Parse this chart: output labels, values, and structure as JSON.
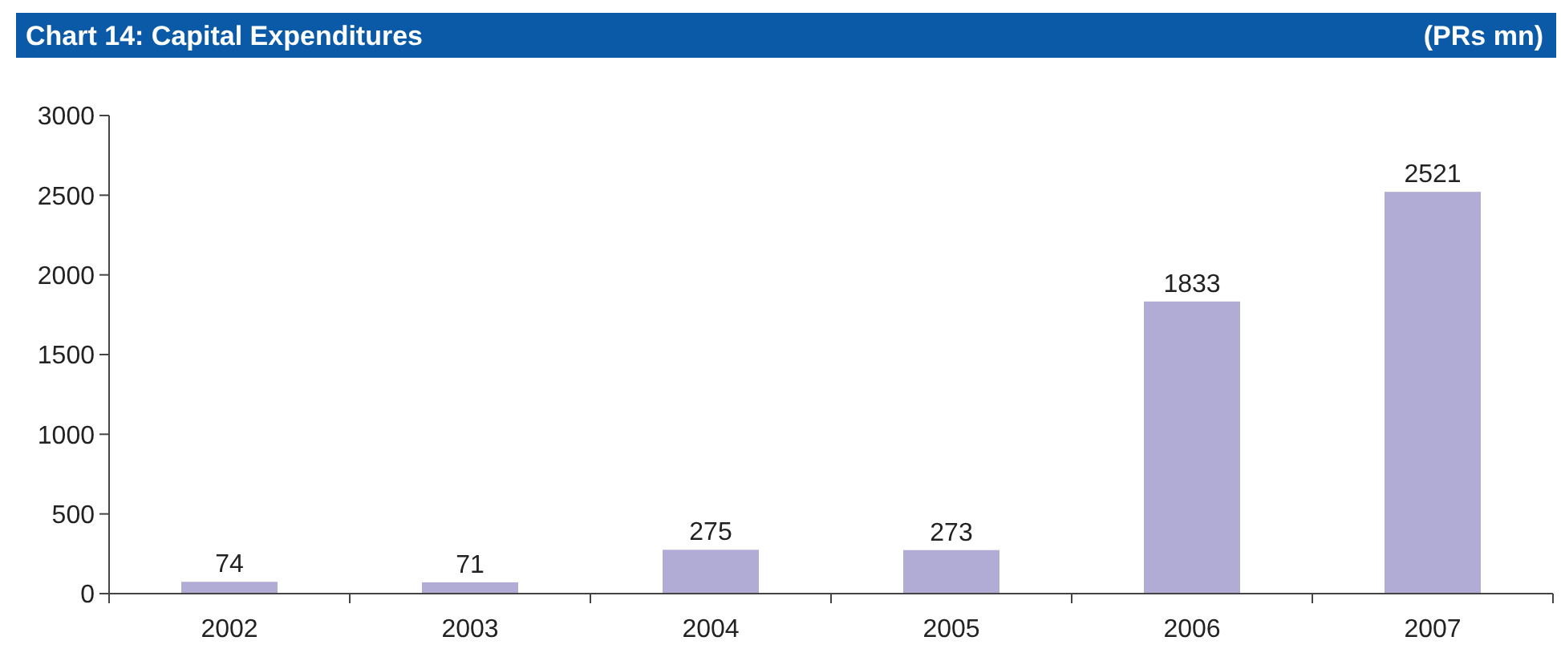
{
  "chart_data": {
    "type": "bar",
    "title": "Chart 14: Capital Expenditures",
    "subtitle": "(PRs mn)",
    "categories": [
      "2002",
      "2003",
      "2004",
      "2005",
      "2006",
      "2007"
    ],
    "values": [
      74,
      71,
      275,
      273,
      1833,
      2521
    ],
    "color": "#b0acd6",
    "ylim": [
      0,
      3000
    ],
    "yticks": [
      0,
      500,
      1000,
      1500,
      2000,
      2500,
      3000
    ],
    "grid": false,
    "data_labels": true
  }
}
